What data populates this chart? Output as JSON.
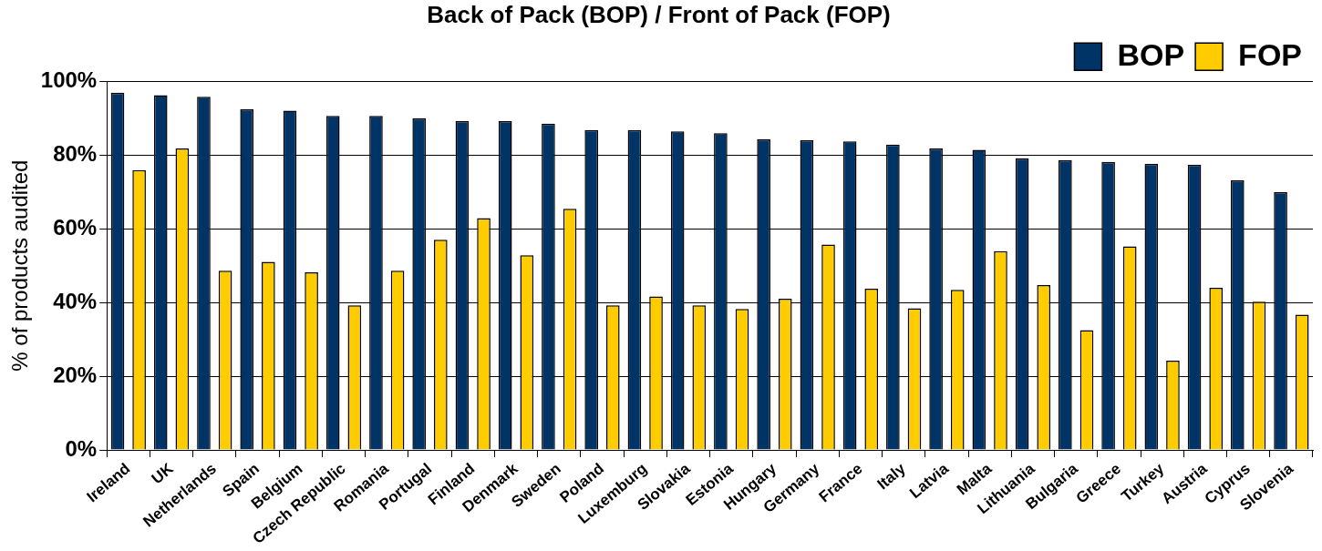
{
  "chart_data": {
    "type": "bar",
    "title": "Back of Pack (BOP) / Front of Pack (FOP)",
    "ylabel": "% of products audited",
    "categories": [
      "Ireland",
      "UK",
      "Netherlands",
      "Spain",
      "Belgium",
      "Czech Republic",
      "Romania",
      "Portugal",
      "Finland",
      "Denmark",
      "Sweden",
      "Poland",
      "Luxemburg",
      "Slovakia",
      "Estonia",
      "Hungary",
      "Germany",
      "France",
      "Italy",
      "Latvia",
      "Malta",
      "Lithuania",
      "Bulgaria",
      "Greece",
      "Turkey",
      "Austria",
      "Cyprus",
      "Slovenia"
    ],
    "series": [
      {
        "name": "BOP",
        "color": "#003366",
        "values": [
          96.9,
          96.2,
          95.8,
          92.4,
          92.0,
          90.6,
          90.6,
          90.0,
          89.2,
          89.2,
          88.5,
          86.8,
          86.8,
          86.4,
          85.9,
          84.3,
          84.0,
          83.7,
          82.8,
          81.8,
          81.4,
          79.1,
          78.6,
          78.1,
          77.6,
          77.3,
          73.1,
          69.9
        ]
      },
      {
        "name": "FOP",
        "color": "#ffcc00",
        "values": [
          75.9,
          81.8,
          48.6,
          51.0,
          48.2,
          39.2,
          48.6,
          57.0,
          62.9,
          52.8,
          65.4,
          39.2,
          41.6,
          39.2,
          38.2,
          41.0,
          55.7,
          43.7,
          38.4,
          43.4,
          53.9,
          44.7,
          32.5,
          55.2,
          24.2,
          44.0,
          40.2,
          36.7
        ]
      }
    ],
    "ylim": [
      0,
      100
    ],
    "yticks": [
      {
        "value": 0,
        "label": "0%"
      },
      {
        "value": 20,
        "label": "20%"
      },
      {
        "value": 40,
        "label": "40%"
      },
      {
        "value": 60,
        "label": "60%"
      },
      {
        "value": 80,
        "label": "80%"
      },
      {
        "value": 100,
        "label": "100%"
      }
    ],
    "grid": "y",
    "legend": "top right"
  }
}
